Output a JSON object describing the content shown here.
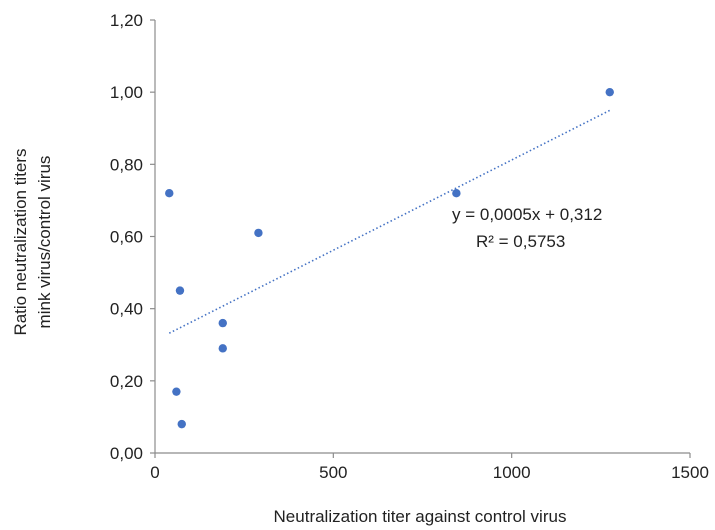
{
  "chart_data": {
    "type": "scatter",
    "title": "",
    "xlabel": "Neutralization titer against control virus",
    "ylabel_lines": [
      "Ratio neutralization titers",
      "mink virus/control virus"
    ],
    "xlim": [
      0,
      1500
    ],
    "ylim": [
      0,
      1.2
    ],
    "x_ticks": [
      {
        "value": 0,
        "label": "0"
      },
      {
        "value": 500,
        "label": "500"
      },
      {
        "value": 1000,
        "label": "1000"
      },
      {
        "value": 1500,
        "label": "1500"
      }
    ],
    "y_ticks": [
      {
        "value": 0,
        "label": "0,00"
      },
      {
        "value": 0.2,
        "label": "0,20"
      },
      {
        "value": 0.4,
        "label": "0,40"
      },
      {
        "value": 0.6,
        "label": "0,60"
      },
      {
        "value": 0.8,
        "label": "0,80"
      },
      {
        "value": 1.0,
        "label": "1,00"
      },
      {
        "value": 1.2,
        "label": "1,20"
      }
    ],
    "grid": false,
    "legend": "none",
    "series": [
      {
        "color": "#4472c4",
        "points": [
          {
            "x": 40,
            "y": 0.72
          },
          {
            "x": 60,
            "y": 0.17
          },
          {
            "x": 70,
            "y": 0.45
          },
          {
            "x": 75,
            "y": 0.08
          },
          {
            "x": 190,
            "y": 0.36
          },
          {
            "x": 190,
            "y": 0.29
          },
          {
            "x": 290,
            "y": 0.61
          },
          {
            "x": 845,
            "y": 0.72
          },
          {
            "x": 1275,
            "y": 1.0
          }
        ]
      }
    ],
    "trendline": {
      "style": "dotted",
      "color": "#4472c4",
      "slope": 0.0005,
      "intercept": 0.312,
      "x_range": [
        40,
        1275
      ],
      "equation": "y = 0,0005x + 0,312",
      "r_squared": "R² = 0,5753"
    }
  }
}
